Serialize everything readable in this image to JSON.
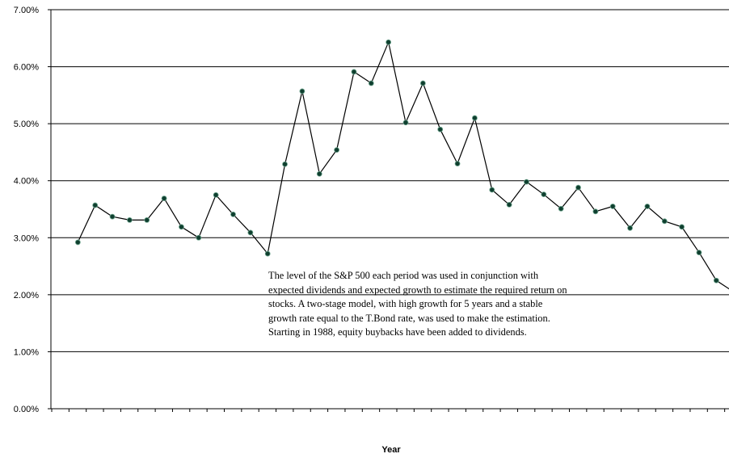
{
  "chart_data": {
    "type": "line",
    "title": "",
    "xlabel": "Year",
    "ylabel": "",
    "ylim": [
      0,
      0.07
    ],
    "y_ticks": [
      "0.00%",
      "1.00%",
      "2.00%",
      "3.00%",
      "4.00%",
      "5.00%",
      "6.00%",
      "7.00%"
    ],
    "grid": "horizontal",
    "x_tick_labels_visible": false,
    "series": [
      {
        "values": [
          0.0292,
          0.0357,
          0.0337,
          0.0331,
          0.0331,
          0.0369,
          0.0319,
          0.03,
          0.0375,
          0.0341,
          0.0309,
          0.0272,
          0.0429,
          0.0557,
          0.0412,
          0.0454,
          0.0591,
          0.0571,
          0.0643,
          0.0502,
          0.0571,
          0.049,
          0.043,
          0.051,
          0.0384,
          0.0358,
          0.0398,
          0.0376,
          0.0351,
          0.0388,
          0.0346,
          0.0355,
          0.0317,
          0.0355,
          0.0329,
          0.0319,
          0.0274,
          0.0225,
          0.0205
        ]
      }
    ],
    "line_color": "#000000",
    "marker_color": "#0f3f2f"
  },
  "annotation": {
    "lines": [
      "The level of the S&P 500 each period was used in conjunction with",
      "expected dividends and expected growth to estimate the required return on",
      "stocks. A two-stage model, with high growth for 5 years and a stable",
      "growth rate equal to the T.Bond rate, was used to make the estimation.",
      "Starting in 1988, equity buybacks have been added to dividends."
    ]
  }
}
